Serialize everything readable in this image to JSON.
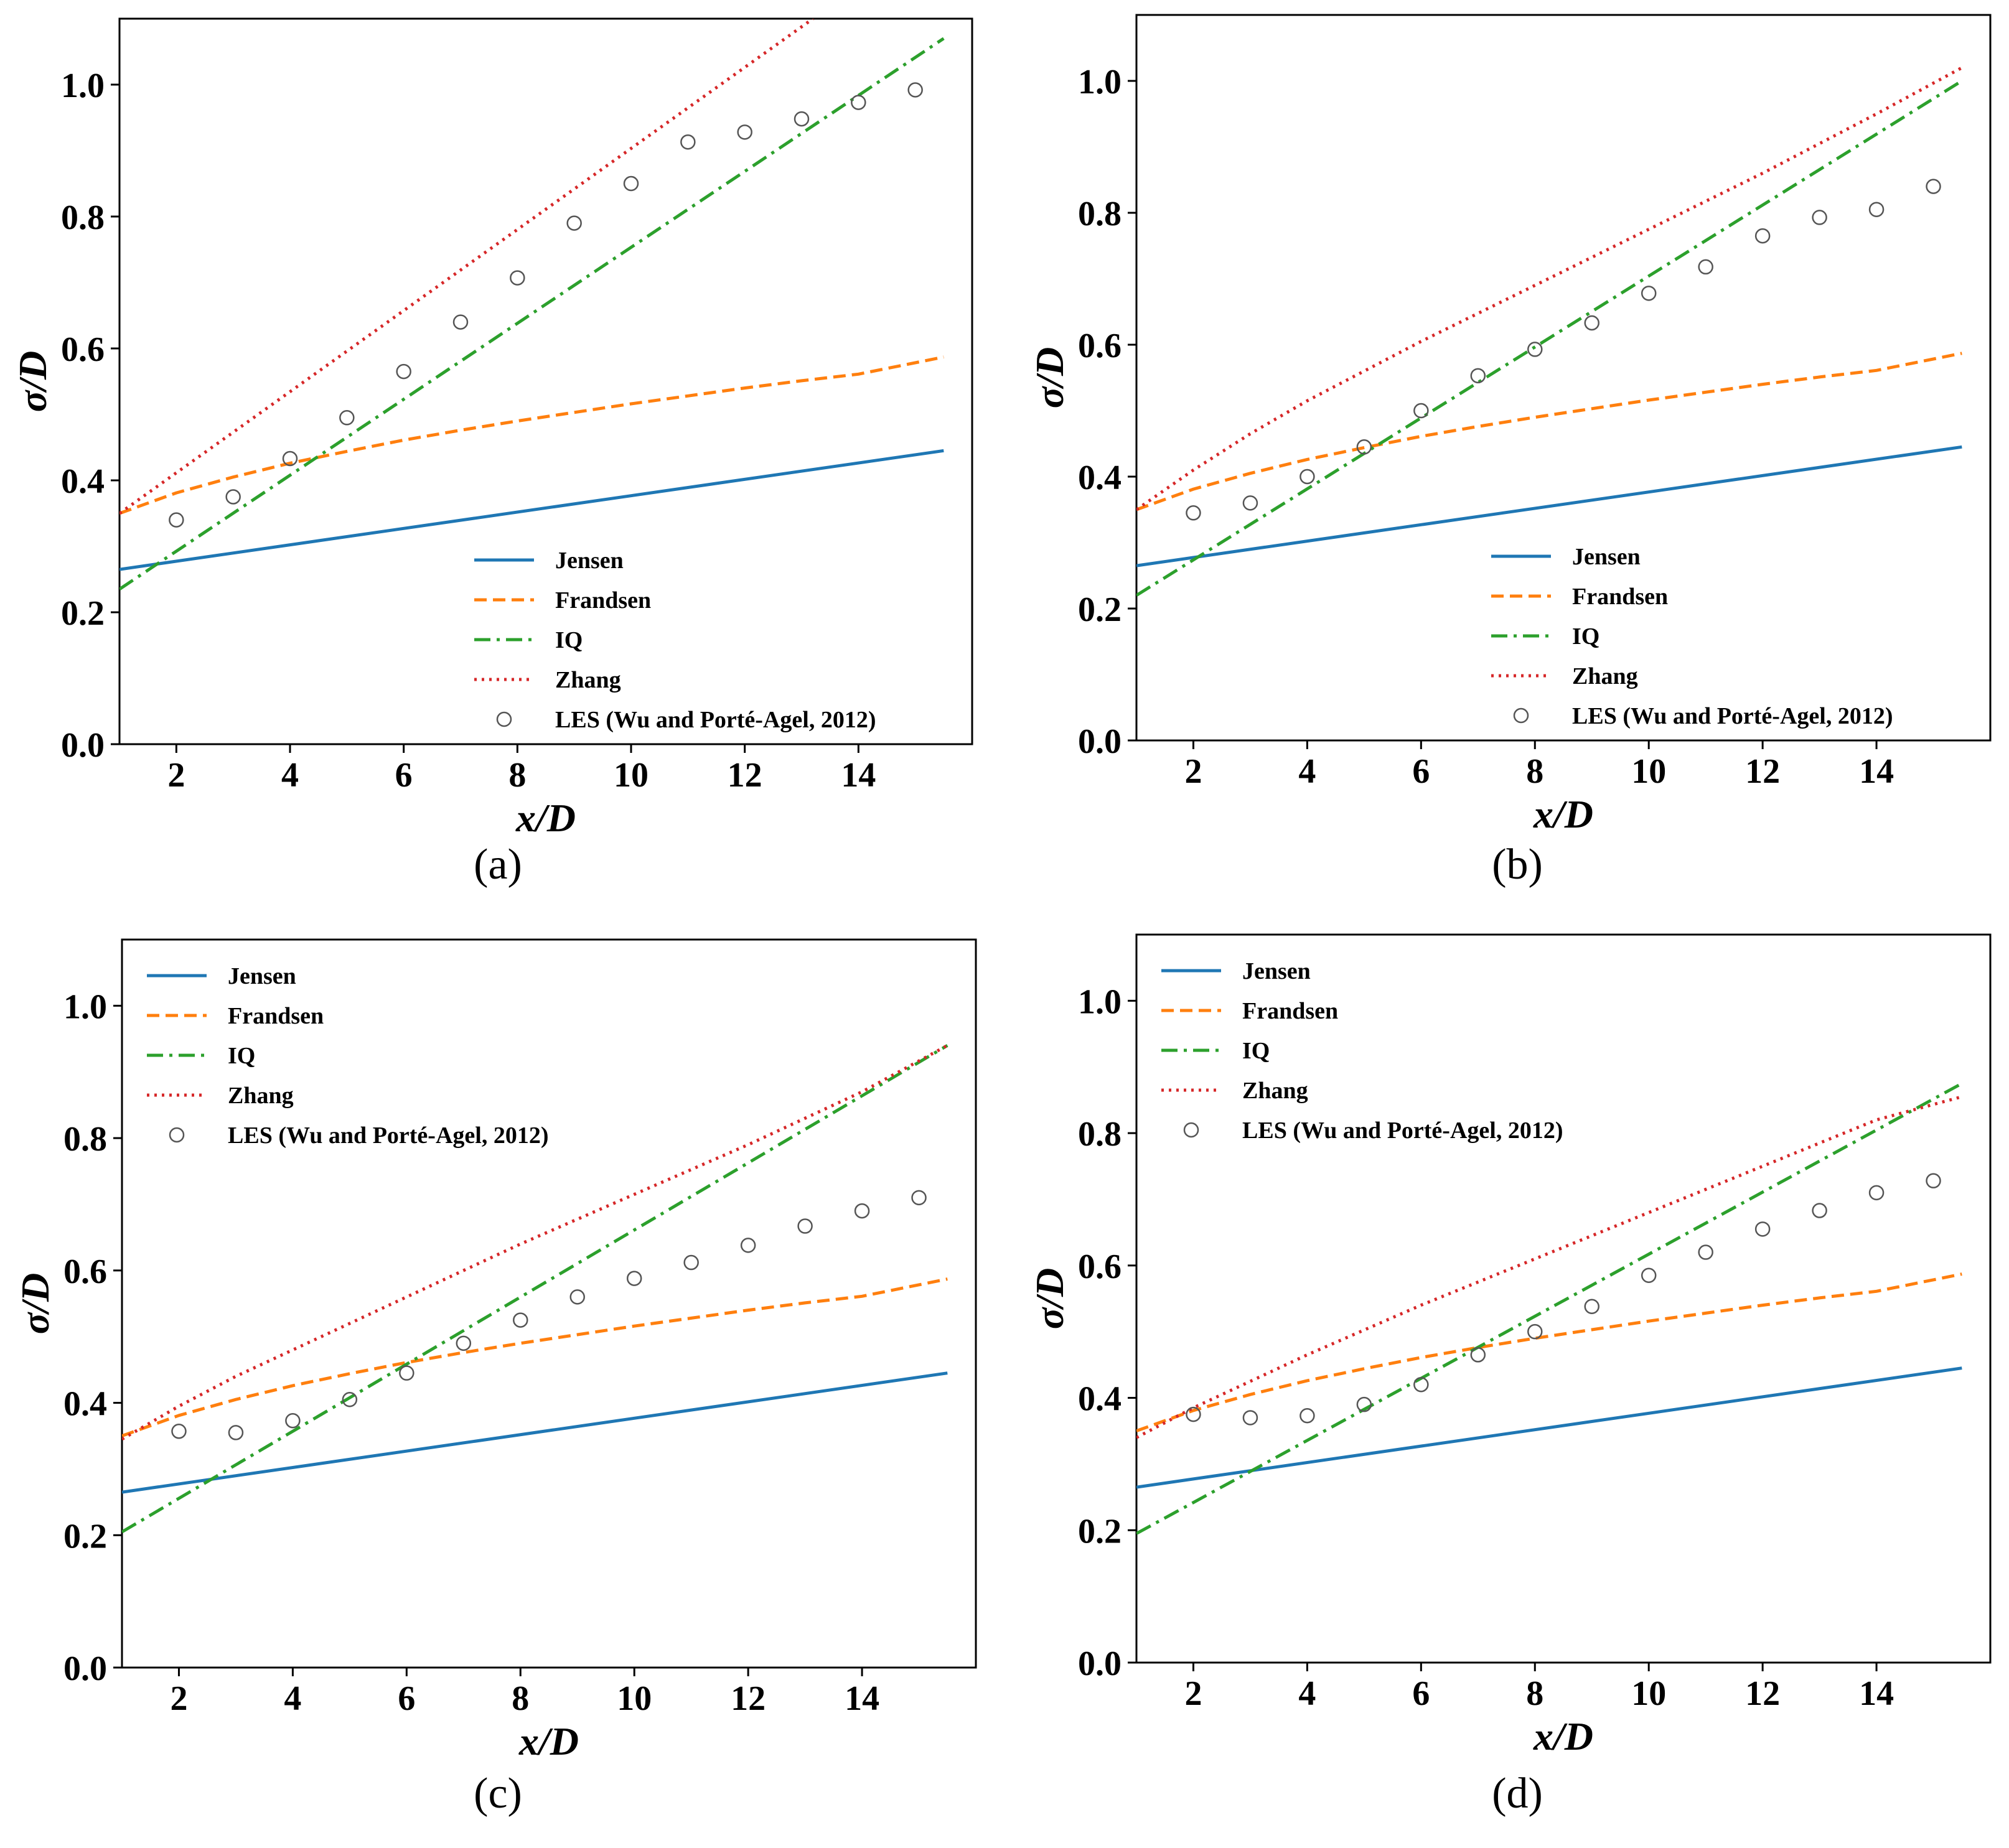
{
  "chart_data": [
    {
      "type": "line",
      "caption": "(a)",
      "xlabel": "x/D",
      "ylabel": "σ/D",
      "xlim": [
        1,
        16
      ],
      "ylim": [
        0,
        1.1
      ],
      "xticks": [
        "2",
        "4",
        "6",
        "8",
        "10",
        "12",
        "14"
      ],
      "yticks": [
        "0.0",
        "0.2",
        "0.4",
        "0.6",
        "0.8",
        "1.0"
      ],
      "legend_position": "lower-right",
      "series": [
        {
          "name": "Jensen",
          "style": "solid",
          "color": "#1f77b4",
          "x": [
            1,
            15.5
          ],
          "y": [
            0.265,
            0.445
          ]
        },
        {
          "name": "Frandsen",
          "style": "dashed",
          "color": "#ff7f0e",
          "x": [
            1,
            2,
            3,
            4,
            5,
            6,
            7,
            8,
            9,
            10,
            11,
            12,
            13,
            14,
            15.5
          ],
          "y": [
            0.35,
            0.381,
            0.405,
            0.426,
            0.444,
            0.461,
            0.476,
            0.49,
            0.503,
            0.516,
            0.528,
            0.54,
            0.551,
            0.561,
            0.587
          ]
        },
        {
          "name": "IQ",
          "style": "dashdot",
          "color": "#2ca02c",
          "x": [
            1,
            15.5
          ],
          "y": [
            0.235,
            1.07
          ]
        },
        {
          "name": "Zhang",
          "style": "dotted",
          "color": "#d62728",
          "x": [
            1,
            13.2
          ],
          "y": [
            0.35,
            1.1
          ]
        },
        {
          "name": "LES (Wu and Porté-Agel, 2012)",
          "style": "marker",
          "color": "#555555",
          "x": [
            2,
            3,
            4,
            5,
            6,
            7,
            8,
            9,
            10,
            11,
            12,
            13,
            14,
            15
          ],
          "y": [
            0.34,
            0.375,
            0.433,
            0.495,
            0.565,
            0.64,
            0.707,
            0.79,
            0.85,
            0.913,
            0.928,
            0.948,
            0.973,
            0.992
          ]
        }
      ]
    },
    {
      "type": "line",
      "caption": "(b)",
      "xlabel": "x/D",
      "ylabel": "σ/D",
      "xlim": [
        1,
        16
      ],
      "ylim": [
        0,
        1.1
      ],
      "xticks": [
        "2",
        "4",
        "6",
        "8",
        "10",
        "12",
        "14"
      ],
      "yticks": [
        "0.0",
        "0.2",
        "0.4",
        "0.6",
        "0.8",
        "1.0"
      ],
      "legend_position": "lower-right",
      "series": [
        {
          "name": "Jensen",
          "style": "solid",
          "color": "#1f77b4",
          "x": [
            1,
            15.5
          ],
          "y": [
            0.265,
            0.445
          ]
        },
        {
          "name": "Frandsen",
          "style": "dashed",
          "color": "#ff7f0e",
          "x": [
            1,
            2,
            3,
            4,
            5,
            6,
            7,
            8,
            9,
            10,
            11,
            12,
            13,
            14,
            15.5
          ],
          "y": [
            0.35,
            0.381,
            0.405,
            0.426,
            0.444,
            0.461,
            0.476,
            0.49,
            0.503,
            0.516,
            0.528,
            0.54,
            0.551,
            0.561,
            0.587
          ]
        },
        {
          "name": "IQ",
          "style": "dashdot",
          "color": "#2ca02c",
          "x": [
            1,
            15.5
          ],
          "y": [
            0.22,
            1.0
          ]
        },
        {
          "name": "Zhang",
          "style": "dotted",
          "color": "#d62728",
          "x": [
            1,
            2,
            3,
            4,
            6,
            8,
            10,
            12,
            14,
            15.5
          ],
          "y": [
            0.35,
            0.41,
            0.465,
            0.515,
            0.605,
            0.69,
            0.775,
            0.86,
            0.95,
            1.02
          ]
        },
        {
          "name": "LES (Wu and Porté-Agel, 2012)",
          "style": "marker",
          "color": "#555555",
          "x": [
            2,
            3,
            4,
            5,
            6,
            7,
            8,
            9,
            10,
            11,
            12,
            13,
            14,
            15
          ],
          "y": [
            0.345,
            0.36,
            0.4,
            0.445,
            0.5,
            0.553,
            0.593,
            0.633,
            0.678,
            0.718,
            0.765,
            0.793,
            0.805,
            0.84
          ]
        }
      ]
    },
    {
      "type": "line",
      "caption": "(c)",
      "xlabel": "x/D",
      "ylabel": "σ/D",
      "xlim": [
        1,
        16
      ],
      "ylim": [
        0,
        1.1
      ],
      "xticks": [
        "2",
        "4",
        "6",
        "8",
        "10",
        "12",
        "14"
      ],
      "yticks": [
        "0.0",
        "0.2",
        "0.4",
        "0.6",
        "0.8",
        "1.0"
      ],
      "legend_position": "upper-left",
      "series": [
        {
          "name": "Jensen",
          "style": "solid",
          "color": "#1f77b4",
          "x": [
            1,
            15.5
          ],
          "y": [
            0.265,
            0.445
          ]
        },
        {
          "name": "Frandsen",
          "style": "dashed",
          "color": "#ff7f0e",
          "x": [
            1,
            2,
            3,
            4,
            5,
            6,
            7,
            8,
            9,
            10,
            11,
            12,
            13,
            14,
            15.5
          ],
          "y": [
            0.35,
            0.381,
            0.405,
            0.426,
            0.444,
            0.461,
            0.476,
            0.49,
            0.503,
            0.516,
            0.528,
            0.54,
            0.551,
            0.561,
            0.587
          ]
        },
        {
          "name": "IQ",
          "style": "dashdot",
          "color": "#2ca02c",
          "x": [
            1,
            15.5
          ],
          "y": [
            0.205,
            0.94
          ]
        },
        {
          "name": "Zhang",
          "style": "dotted",
          "color": "#d62728",
          "x": [
            1,
            2,
            3,
            4,
            6,
            8,
            10,
            12,
            14,
            15.5
          ],
          "y": [
            0.345,
            0.395,
            0.44,
            0.48,
            0.56,
            0.64,
            0.715,
            0.79,
            0.87,
            0.94
          ]
        },
        {
          "name": "LES (Wu and Porté-Agel, 2012)",
          "style": "marker",
          "color": "#555555",
          "x": [
            2,
            3,
            4,
            5,
            6,
            7,
            8,
            9,
            10,
            11,
            12,
            13,
            14,
            15
          ],
          "y": [
            0.357,
            0.355,
            0.373,
            0.405,
            0.445,
            0.49,
            0.525,
            0.56,
            0.588,
            0.612,
            0.638,
            0.667,
            0.69,
            0.71
          ]
        }
      ]
    },
    {
      "type": "line",
      "caption": "(d)",
      "xlabel": "x/D",
      "ylabel": "σ/D",
      "xlim": [
        1,
        16
      ],
      "ylim": [
        0,
        1.1
      ],
      "xticks": [
        "2",
        "4",
        "6",
        "8",
        "10",
        "12",
        "14"
      ],
      "yticks": [
        "0.0",
        "0.2",
        "0.4",
        "0.6",
        "0.8",
        "1.0"
      ],
      "legend_position": "upper-left",
      "series": [
        {
          "name": "Jensen",
          "style": "solid",
          "color": "#1f77b4",
          "x": [
            1,
            15.5
          ],
          "y": [
            0.265,
            0.445
          ]
        },
        {
          "name": "Frandsen",
          "style": "dashed",
          "color": "#ff7f0e",
          "x": [
            1,
            2,
            3,
            4,
            5,
            6,
            7,
            8,
            9,
            10,
            11,
            12,
            13,
            14,
            15.5
          ],
          "y": [
            0.35,
            0.381,
            0.405,
            0.426,
            0.444,
            0.461,
            0.476,
            0.49,
            0.503,
            0.516,
            0.528,
            0.54,
            0.551,
            0.561,
            0.587
          ]
        },
        {
          "name": "IQ",
          "style": "dashdot",
          "color": "#2ca02c",
          "x": [
            1,
            15.5
          ],
          "y": [
            0.195,
            0.875
          ]
        },
        {
          "name": "Zhang",
          "style": "dotted",
          "color": "#d62728",
          "x": [
            1,
            2,
            3,
            4,
            6,
            8,
            10,
            12,
            14,
            15.5
          ],
          "y": [
            0.34,
            0.385,
            0.425,
            0.465,
            0.54,
            0.61,
            0.68,
            0.75,
            0.82,
            0.855
          ]
        },
        {
          "name": "LES (Wu and Porté-Agel, 2012)",
          "style": "marker",
          "color": "#555555",
          "x": [
            2,
            3,
            4,
            5,
            6,
            7,
            8,
            9,
            10,
            11,
            12,
            13,
            14,
            15
          ],
          "y": [
            0.375,
            0.37,
            0.373,
            0.39,
            0.42,
            0.465,
            0.5,
            0.538,
            0.585,
            0.62,
            0.655,
            0.683,
            0.71,
            0.728
          ]
        }
      ]
    }
  ]
}
